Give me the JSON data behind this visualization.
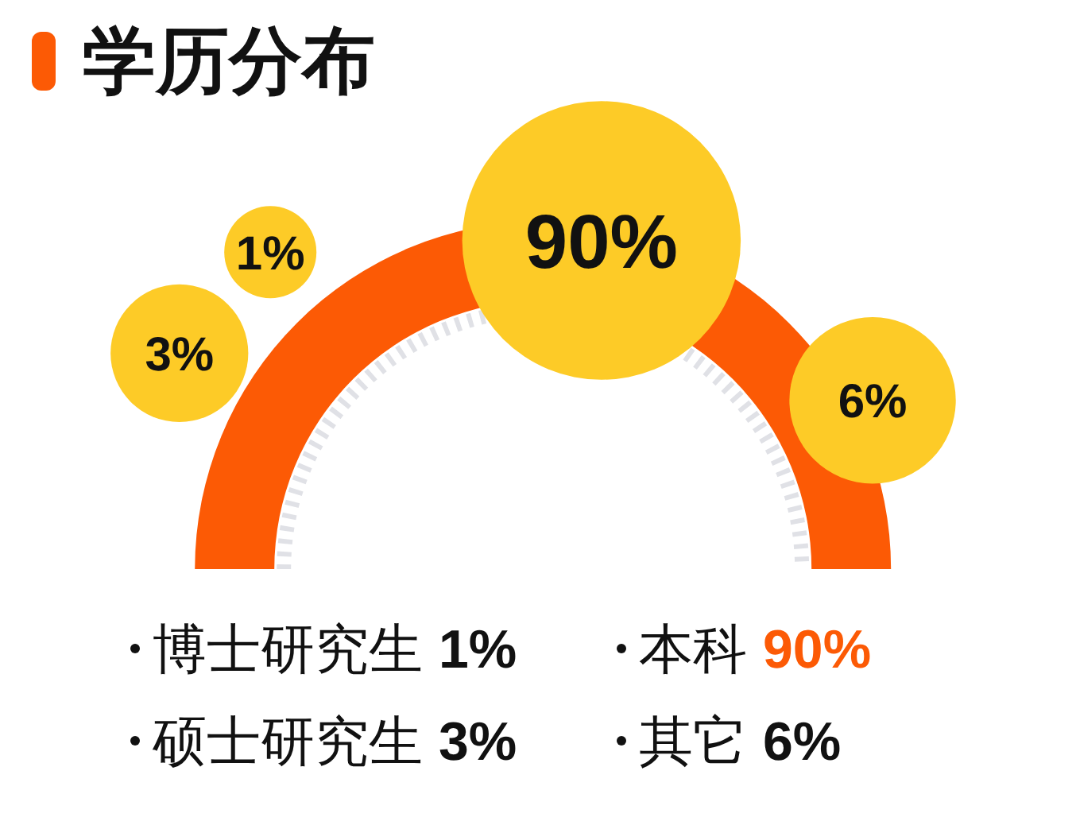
{
  "chart_data": {
    "type": "other",
    "title": "学历分布",
    "categories": [
      "博士研究生",
      "硕士研究生",
      "本科",
      "其它"
    ],
    "values": [
      1,
      3,
      90,
      6
    ],
    "value_labels": [
      "1%",
      "3%",
      "90%",
      "6%"
    ],
    "colors": [
      "#fdcb27",
      "#fdcb27",
      "#fdcb27",
      "#fdcb27"
    ]
  }
}
